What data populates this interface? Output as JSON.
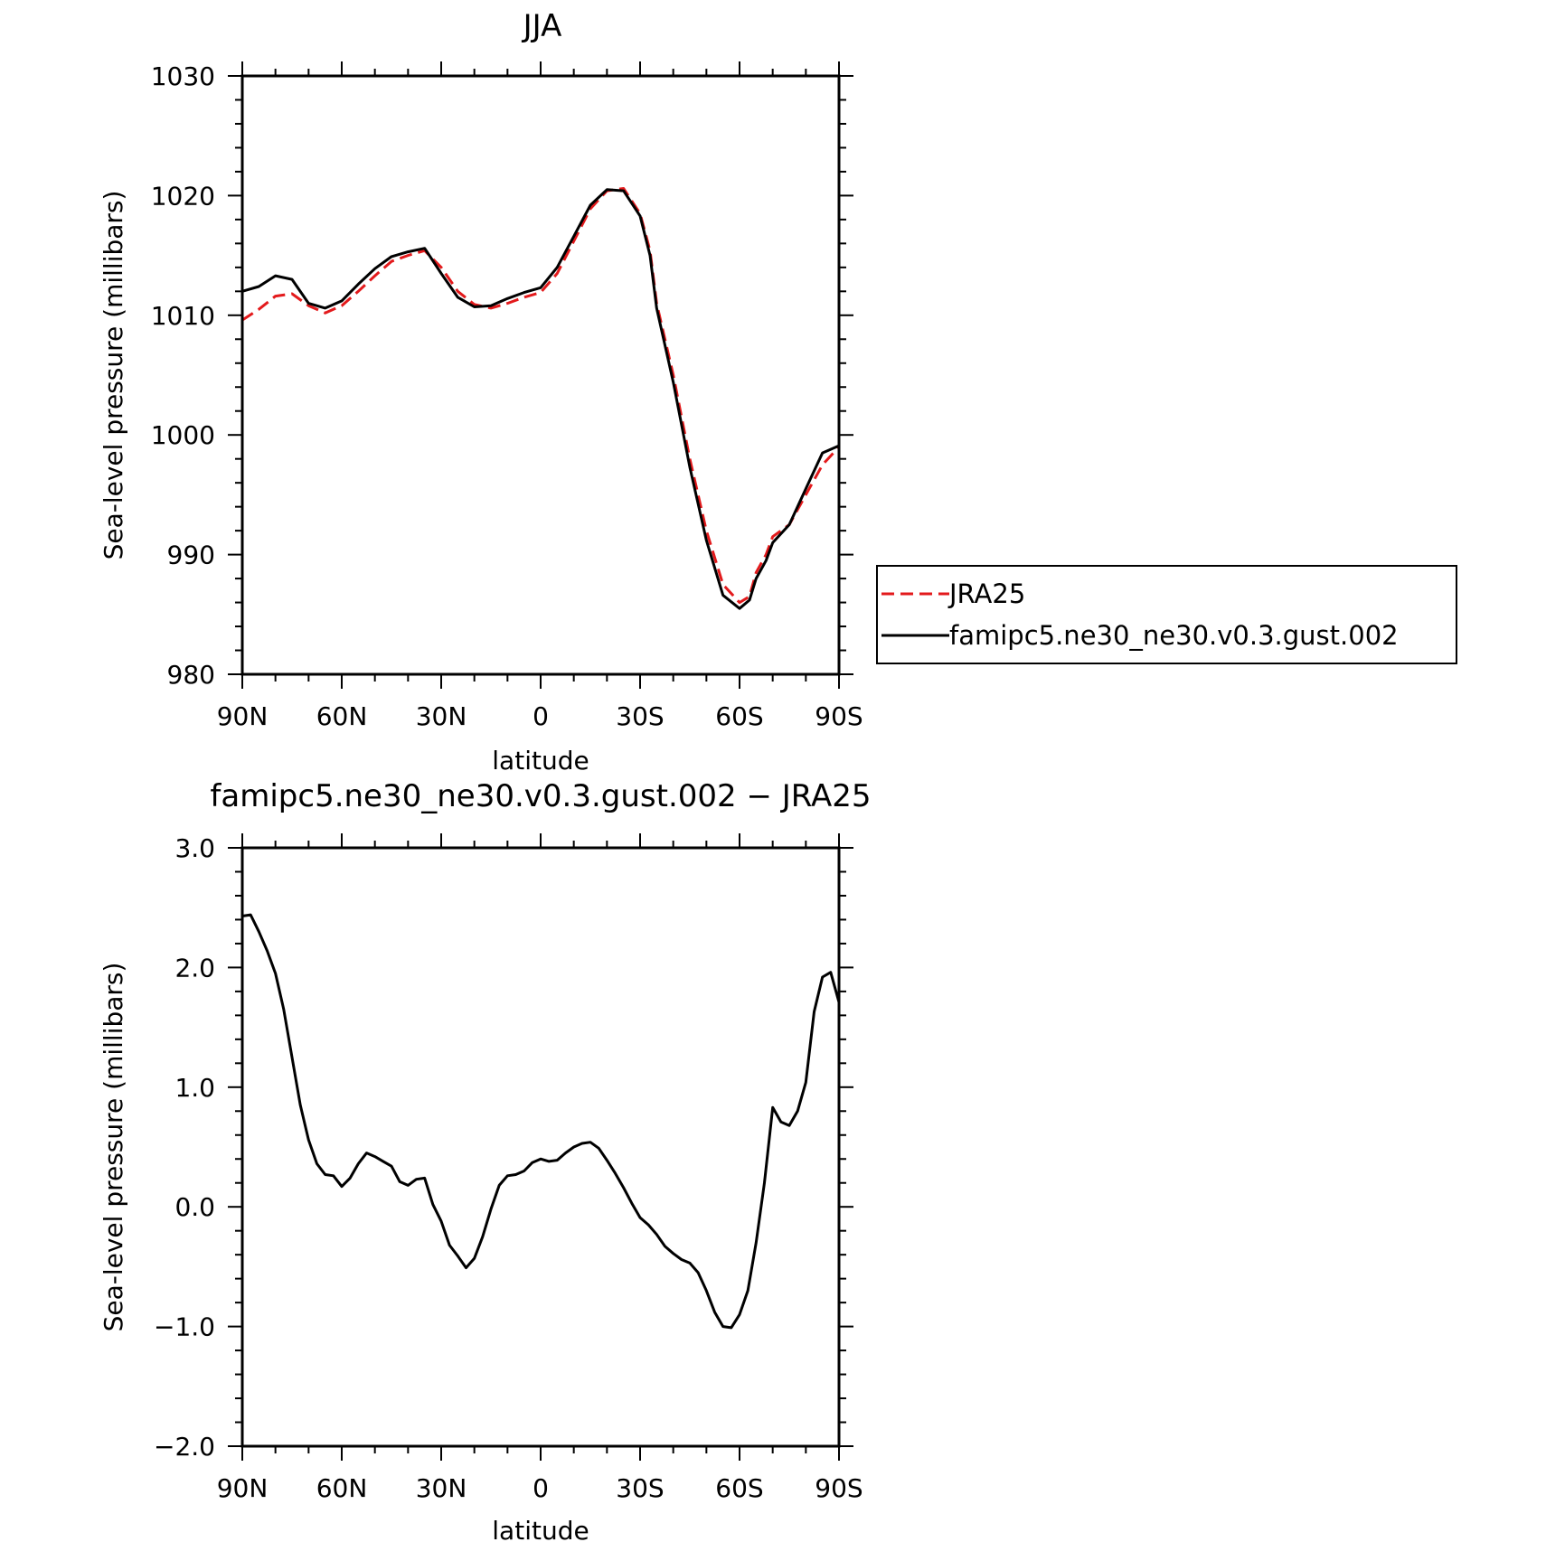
{
  "chart_data": [
    {
      "type": "line",
      "title": "JJA",
      "xlabel": "latitude",
      "ylabel": "Sea-level pressure (millibars)",
      "xlim": [
        90,
        -90
      ],
      "ylim": [
        980,
        1030
      ],
      "xticks": [
        90,
        60,
        30,
        0,
        -30,
        -60,
        -90
      ],
      "xtick_labels": [
        "90N",
        "60N",
        "30N",
        "0",
        "30S",
        "60S",
        "90S"
      ],
      "yticks": [
        980,
        990,
        1000,
        1010,
        1020,
        1030
      ],
      "ytick_labels": [
        "980",
        "990",
        "1000",
        "1010",
        "1020",
        "1030"
      ],
      "legend": "right-side box",
      "series": [
        {
          "name": "JRA25",
          "color": "#e31a1c",
          "style": "dashed",
          "x": [
            90,
            85,
            80,
            75,
            70,
            65,
            60,
            55,
            50,
            45,
            40,
            35,
            30,
            25,
            20,
            15,
            10,
            5,
            0,
            -5,
            -10,
            -15,
            -20,
            -25,
            -30,
            -33,
            -35,
            -40,
            -45,
            -50,
            -55,
            -60,
            -63,
            -65,
            -68,
            -70,
            -75,
            -80,
            -85,
            -90
          ],
          "values": [
            1009.6,
            1010.5,
            1011.6,
            1011.8,
            1010.8,
            1010.2,
            1010.8,
            1012.0,
            1013.3,
            1014.5,
            1015.0,
            1015.4,
            1014.0,
            1012.0,
            1010.9,
            1010.6,
            1011.0,
            1011.5,
            1011.9,
            1013.5,
            1016.2,
            1018.9,
            1020.4,
            1020.6,
            1018.5,
            1015.4,
            1011.0,
            1005.0,
            998.0,
            992.0,
            987.5,
            986.0,
            986.5,
            988.5,
            990.0,
            991.5,
            992.5,
            995.0,
            997.5,
            999.0
          ]
        },
        {
          "name": "famipc5.ne30_ne30.v0.3.gust.002",
          "color": "#000000",
          "style": "solid",
          "x": [
            90,
            85,
            80,
            75,
            70,
            65,
            60,
            55,
            50,
            45,
            40,
            35,
            30,
            25,
            20,
            15,
            10,
            5,
            0,
            -5,
            -10,
            -15,
            -20,
            -25,
            -30,
            -33,
            -35,
            -40,
            -45,
            -50,
            -55,
            -60,
            -63,
            -65,
            -68,
            -70,
            -75,
            -80,
            -85,
            -90
          ],
          "values": [
            1012.0,
            1012.4,
            1013.3,
            1013.0,
            1011.0,
            1010.6,
            1011.2,
            1012.6,
            1013.9,
            1014.9,
            1015.3,
            1015.6,
            1013.5,
            1011.5,
            1010.7,
            1010.8,
            1011.4,
            1011.9,
            1012.3,
            1014.0,
            1016.6,
            1019.2,
            1020.5,
            1020.4,
            1018.3,
            1015.0,
            1010.6,
            1004.4,
            997.3,
            991.2,
            986.6,
            985.5,
            986.2,
            988.0,
            989.5,
            991.0,
            992.5,
            995.5,
            998.5,
            999.1
          ]
        }
      ]
    },
    {
      "type": "line",
      "title": "famipc5.ne30_ne30.v0.3.gust.002 − JRA25",
      "xlabel": "latitude",
      "ylabel": "Sea-level pressure (millibars)",
      "xlim": [
        90,
        -90
      ],
      "ylim": [
        -2.0,
        3.0
      ],
      "xticks": [
        90,
        60,
        30,
        0,
        -30,
        -60,
        -90
      ],
      "xtick_labels": [
        "90N",
        "60N",
        "30N",
        "0",
        "30S",
        "60S",
        "90S"
      ],
      "yticks": [
        -2.0,
        -1.0,
        0.0,
        1.0,
        2.0,
        3.0
      ],
      "ytick_labels": [
        "−2.0",
        "−1.0",
        "0.0",
        "1.0",
        "2.0",
        "3.0"
      ],
      "series": [
        {
          "color": "#000000",
          "style": "solid",
          "x": [
            90,
            87.5,
            85,
            82.5,
            80,
            77.5,
            75,
            72.5,
            70,
            67.5,
            65,
            62.5,
            60,
            57.5,
            55,
            52.5,
            50,
            47.5,
            45,
            42.5,
            40,
            37.5,
            35,
            32.5,
            30,
            27.5,
            25,
            22.5,
            20,
            17.5,
            15,
            12.5,
            10,
            7.5,
            5,
            2.5,
            0,
            -2.5,
            -5,
            -7.5,
            -10,
            -12.5,
            -15,
            -17.5,
            -20,
            -22.5,
            -25,
            -27.5,
            -30,
            -32.5,
            -35,
            -37.5,
            -40,
            -42.5,
            -45,
            -47.5,
            -50,
            -52.5,
            -55,
            -57.5,
            -60,
            -62.5,
            -65,
            -67.5,
            -70,
            -72.5,
            -75,
            -77.5,
            -80,
            -82.5,
            -85,
            -87.5,
            -90
          ],
          "values": [
            2.43,
            2.44,
            2.3,
            2.14,
            1.95,
            1.65,
            1.25,
            0.85,
            0.56,
            0.36,
            0.27,
            0.26,
            0.17,
            0.24,
            0.36,
            0.45,
            0.42,
            0.38,
            0.34,
            0.21,
            0.18,
            0.23,
            0.24,
            0.02,
            -0.12,
            -0.32,
            -0.41,
            -0.51,
            -0.43,
            -0.25,
            -0.02,
            0.18,
            0.26,
            0.27,
            0.3,
            0.37,
            0.4,
            0.38,
            0.39,
            0.45,
            0.5,
            0.53,
            0.54,
            0.49,
            0.39,
            0.28,
            0.16,
            0.03,
            -0.09,
            -0.15,
            -0.23,
            -0.33,
            -0.39,
            -0.44,
            -0.47,
            -0.55,
            -0.7,
            -0.88,
            -1.0,
            -1.01,
            -0.9,
            -0.7,
            -0.3,
            0.2,
            0.83,
            0.71,
            0.68,
            0.8,
            1.04,
            1.63,
            1.92,
            1.96,
            1.71
          ]
        }
      ]
    }
  ]
}
